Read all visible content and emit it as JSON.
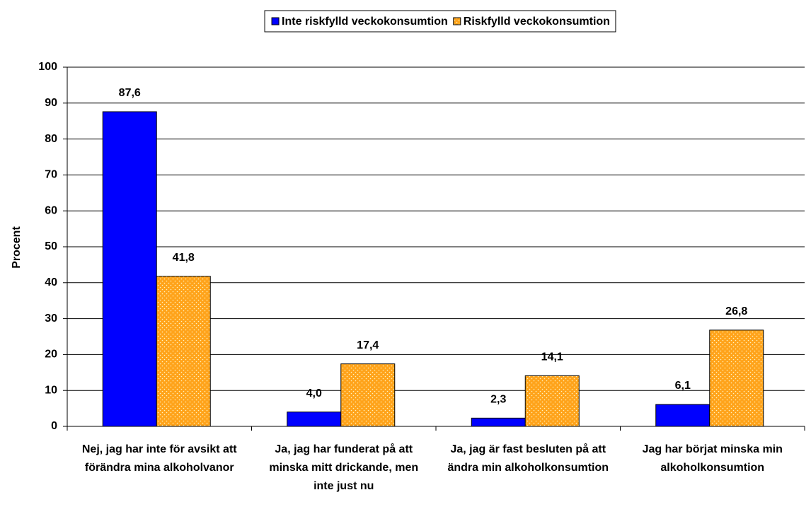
{
  "chart_data": {
    "type": "bar",
    "categories": [
      "Nej, jag har inte för avsikt att förändra mina alkoholvanor",
      "Ja, jag har funderat på att minska mitt drickande, men inte just nu",
      "Ja, jag är fast besluten på att ändra min alkoholkonsumtion",
      "Jag har börjat minska min alkoholkonsumtion"
    ],
    "series": [
      {
        "name": "Inte riskfylld veckokonsumtion",
        "color": "#0000ff",
        "values": [
          87.6,
          4.0,
          2.3,
          6.1
        ],
        "value_labels": [
          "87,6",
          "4,0",
          "2,3",
          "6,1"
        ]
      },
      {
        "name": "Riskfylld veckokonsumtion",
        "color": "#ffa31a",
        "pattern": "dotted",
        "values": [
          41.8,
          17.4,
          14.1,
          26.8
        ],
        "value_labels": [
          "41,8",
          "17,4",
          "14,1",
          "26,8"
        ]
      }
    ],
    "ylabel": "Procent",
    "ylim": [
      0,
      100
    ],
    "yticks": [
      0,
      10,
      20,
      30,
      40,
      50,
      60,
      70,
      80,
      90,
      100
    ],
    "grid": true,
    "legend": "top"
  }
}
